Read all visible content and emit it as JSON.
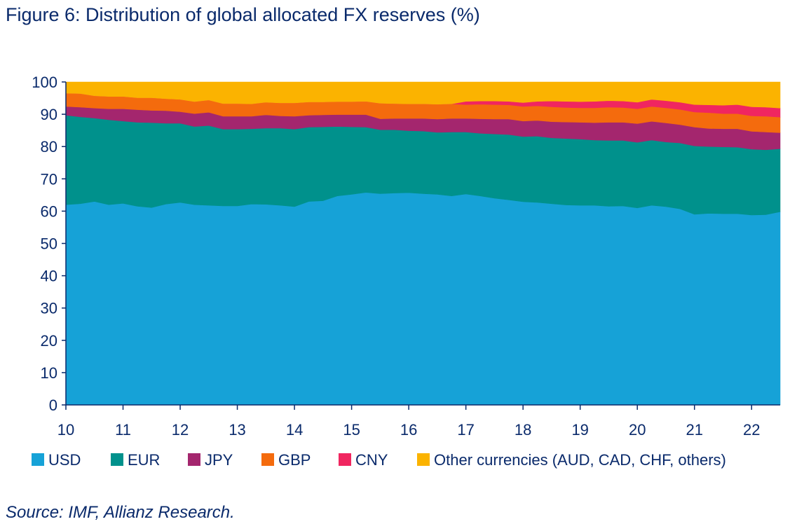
{
  "figure": {
    "title": "Figure 6: Distribution of global allocated FX reserves (%)",
    "source": "Source: IMF, Allianz Research."
  },
  "chart_data": {
    "type": "area",
    "stacked": true,
    "title": "Figure 6: Distribution of global allocated FX reserves (%)",
    "xlabel": "",
    "ylabel": "",
    "x_tick_labels": [
      "10",
      "11",
      "12",
      "13",
      "14",
      "15",
      "16",
      "17",
      "18",
      "19",
      "20",
      "21",
      "22"
    ],
    "y_tick_labels": [
      "0",
      "10",
      "20",
      "30",
      "40",
      "50",
      "60",
      "70",
      "80",
      "90",
      "100"
    ],
    "xlim": [
      10,
      22.5
    ],
    "ylim": [
      0,
      100
    ],
    "grid": false,
    "legend_position": "bottom",
    "x": [
      10,
      10.25,
      10.5,
      10.75,
      11,
      11.25,
      11.5,
      11.75,
      12,
      12.25,
      12.5,
      12.75,
      13,
      13.25,
      13.5,
      13.75,
      14,
      14.25,
      14.5,
      14.75,
      15,
      15.25,
      15.5,
      15.75,
      16,
      16.25,
      16.5,
      16.75,
      17,
      17.25,
      17.5,
      17.75,
      18,
      18.25,
      18.5,
      18.75,
      19,
      19.25,
      19.5,
      19.75,
      20,
      20.25,
      20.5,
      20.75,
      21,
      21.25,
      21.5,
      21.75,
      22,
      22.25,
      22.5
    ],
    "series": [
      {
        "name": "USD",
        "color": "#16a2d7",
        "values": [
          62,
          62.3,
          63,
          62,
          62.4,
          61.5,
          61.1,
          62.2,
          62.7,
          62,
          61.8,
          61.6,
          61.6,
          62.2,
          62.1,
          61.8,
          61.4,
          63,
          63.2,
          64.7,
          65.2,
          65.8,
          65.4,
          65.6,
          65.7,
          65.4,
          65.2,
          64.7,
          65.3,
          64.7,
          64,
          63.5,
          62.9,
          62.7,
          62.3,
          61.9,
          61.8,
          61.8,
          61.5,
          61.6,
          61,
          61.8,
          61.4,
          60.7,
          59,
          59.3,
          59.2,
          59.2,
          58.8,
          58.9,
          59.8
        ]
      },
      {
        "name": "EUR",
        "color": "#00918c",
        "values": [
          27.7,
          26.9,
          25.8,
          26.3,
          25.5,
          26,
          26.3,
          25,
          24.5,
          24.2,
          24.7,
          23.8,
          23.8,
          23.3,
          23.6,
          23.9,
          24,
          23,
          22.9,
          21.5,
          20.9,
          20.2,
          19.8,
          19.6,
          19.2,
          19.4,
          19.2,
          19.8,
          19.2,
          19.4,
          19.9,
          20.2,
          20.2,
          20.5,
          20.4,
          20.6,
          20.5,
          20.2,
          20.4,
          20.3,
          20.3,
          20.2,
          20,
          20.4,
          21.2,
          20.7,
          20.7,
          20.6,
          20.4,
          20.1,
          19.5
        ]
      },
      {
        "name": "JPY",
        "color": "#a4266e",
        "values": [
          2.7,
          3,
          3.1,
          3.4,
          3.8,
          3.9,
          3.8,
          3.9,
          3.6,
          4,
          4.1,
          4,
          4,
          3.9,
          4.1,
          3.8,
          4,
          3.7,
          3.7,
          3.7,
          3.8,
          3.9,
          3.4,
          3.5,
          3.8,
          3.9,
          4.1,
          4.2,
          4.2,
          4.5,
          4.6,
          4.8,
          4.8,
          4.9,
          5,
          5.1,
          5.2,
          5.4,
          5.6,
          5.6,
          5.8,
          5.8,
          5.9,
          5.7,
          5.8,
          5.6,
          5.6,
          5.7,
          5.5,
          5.5,
          5
        ]
      },
      {
        "name": "GBP",
        "color": "#f46b0d",
        "values": [
          4.1,
          4.2,
          3.8,
          3.8,
          3.8,
          3.7,
          3.9,
          3.7,
          3.8,
          3.7,
          3.8,
          3.9,
          3.9,
          3.8,
          3.9,
          4,
          4.1,
          4.1,
          4,
          4,
          4,
          4.1,
          4.8,
          4.6,
          4.5,
          4.5,
          4.6,
          4.5,
          4.3,
          4.5,
          4.5,
          4.4,
          4.5,
          4.5,
          4.6,
          4.5,
          4.5,
          4.6,
          4.7,
          4.6,
          4.6,
          4.6,
          4.7,
          4.7,
          4.7,
          4.9,
          4.7,
          4.7,
          4.8,
          4.9,
          4.8
        ]
      },
      {
        "name": "CNY",
        "color": "#f02660",
        "values": [
          0,
          0,
          0,
          0,
          0,
          0,
          0,
          0,
          0,
          0,
          0,
          0,
          0,
          0,
          0,
          0,
          0,
          0,
          0,
          0,
          0,
          0,
          0,
          0,
          0,
          0,
          0,
          0,
          1,
          1,
          1.1,
          1.1,
          1.2,
          1.4,
          1.8,
          1.9,
          1.9,
          2,
          2,
          2,
          2,
          2.2,
          2.2,
          2.2,
          2.3,
          2.4,
          2.6,
          2.8,
          2.8,
          2.8,
          2.8
        ]
      },
      {
        "name": "Other currencies (AUD, CAD, CHF, others)",
        "color": "#fbb300",
        "values": [
          3.5,
          3.6,
          4.3,
          4.5,
          4.5,
          4.9,
          4.9,
          5.2,
          5.4,
          6.1,
          5.6,
          6.7,
          6.7,
          6.8,
          6.3,
          6.5,
          6.5,
          6.2,
          6.2,
          6.1,
          6.1,
          6,
          6.6,
          6.7,
          6.8,
          6.8,
          6.9,
          6.8,
          6,
          5.9,
          5.9,
          6,
          6.4,
          6,
          5.9,
          6,
          6.1,
          6,
          5.8,
          5.9,
          6.3,
          5.4,
          5.8,
          6.3,
          7,
          7.1,
          7.2,
          7,
          7.7,
          7.8,
          8.1
        ]
      }
    ]
  }
}
